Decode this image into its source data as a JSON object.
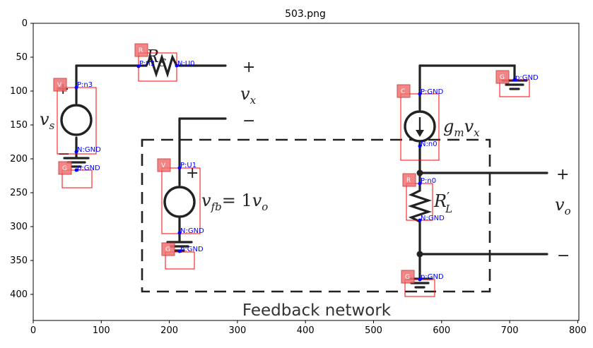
{
  "title": "503.png",
  "x_ticks": [
    "0",
    "100",
    "200",
    "300",
    "400",
    "500",
    "600",
    "700",
    "800"
  ],
  "y_ticks": [
    "0",
    "50",
    "100",
    "150",
    "200",
    "250",
    "300",
    "350",
    "400"
  ],
  "diagram": {
    "rs_label": "R",
    "rs_sub": "S",
    "vx_label": "v",
    "vx_sub": "x",
    "plus_sign": "+",
    "minus_sign": "−",
    "vs_label": "v",
    "vs_sub": "s",
    "vfb_eq": "= 1",
    "vfb_label": "v",
    "vfb_sub": "fb",
    "vfb_o": "v",
    "vfb_o_sub": "o",
    "gm_label": "g",
    "gm_sub": "m",
    "gm_v": "v",
    "gm_vsub": "x",
    "rl_label": "R",
    "rl_prime": "′",
    "rl_sub": "L",
    "vo_label": "v",
    "vo_sub": "o",
    "feedback_label": "Feedback network"
  },
  "annotations": {
    "rs_badge": "R",
    "rs_pin_p": "P:n3",
    "rs_pin_n": "N:U0",
    "vs_badge": "V",
    "vs_pin_p": "P:n3",
    "vs_pin_n": "N:GND",
    "g1_badge": "G",
    "g1_pin": "p:GND",
    "vfb_badge": "V",
    "vfb_pin_p": "P:U1",
    "vfb_pin_n": "N:GND",
    "g2_badge": "G",
    "g2_pin": "p:GND",
    "gm_badge": "C",
    "gm_pin_p": "P:GND",
    "gm_pin_n": "N:n0",
    "g3_badge": "G",
    "g3_pin": "p:GND",
    "rl_badge": "R",
    "rl_pin_p": "P:n0",
    "rl_pin_n": "N:GND",
    "g4_badge": "G",
    "g4_pin": "p:GND"
  }
}
